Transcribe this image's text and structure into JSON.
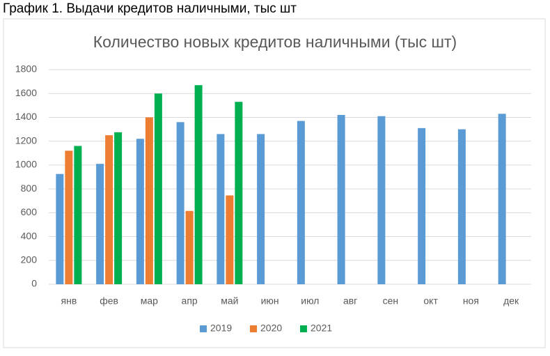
{
  "caption": "График 1. Выдачи кредитов наличными, тыс шт",
  "chart_data": {
    "type": "bar",
    "title": "Количество новых кредитов наличными (тыс шт)",
    "categories": [
      "янв",
      "фев",
      "мар",
      "апр",
      "май",
      "июн",
      "июл",
      "авг",
      "сен",
      "окт",
      "ноя",
      "дек"
    ],
    "series": [
      {
        "name": "2019",
        "color": "#5b9bd5",
        "values": [
          925,
          1010,
          1220,
          1360,
          1260,
          1260,
          1370,
          1420,
          1410,
          1310,
          1300,
          1430
        ]
      },
      {
        "name": "2020",
        "color": "#ed7d31",
        "values": [
          1120,
          1250,
          1400,
          615,
          745,
          null,
          null,
          null,
          null,
          null,
          null,
          null
        ]
      },
      {
        "name": "2021",
        "color": "#00b050",
        "values": [
          1160,
          1275,
          1600,
          1670,
          1530,
          null,
          null,
          null,
          null,
          null,
          null,
          null
        ]
      }
    ],
    "ylim": [
      0,
      1800
    ],
    "yticks": [
      0,
      200,
      400,
      600,
      800,
      1000,
      1200,
      1400,
      1600,
      1800
    ],
    "grid": true,
    "legend": "bottom"
  }
}
